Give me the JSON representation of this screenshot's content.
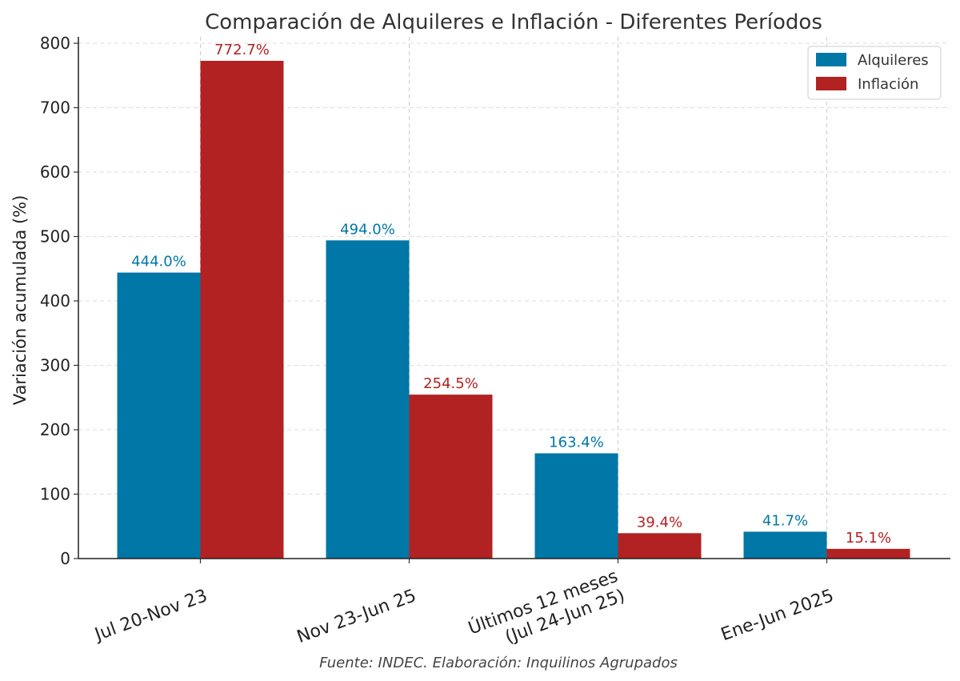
{
  "chart_data": {
    "type": "bar",
    "title": "Comparación de Alquileres e Inflación - Diferentes Períodos",
    "xlabel": "",
    "ylabel": "Variación acumulada (%)",
    "ylim": [
      0,
      810
    ],
    "yticks": [
      0,
      100,
      200,
      300,
      400,
      500,
      600,
      700,
      800
    ],
    "grid": true,
    "legend_position": "top-right",
    "categories": [
      [
        "Jul 20-Nov 23"
      ],
      [
        "Nov 23-Jun 25"
      ],
      [
        "Últimos 12 meses",
        "(Jul 24-Jun 25)"
      ],
      [
        "Ene-Jun 2025"
      ]
    ],
    "series": [
      {
        "name": "Alquileres",
        "color": "#0077a6",
        "values": [
          444.0,
          494.0,
          163.4,
          41.7
        ],
        "labels": [
          "444.0%",
          "494.0%",
          "163.4%",
          "41.7%"
        ]
      },
      {
        "name": "Inflación",
        "color": "#b22222",
        "values": [
          772.7,
          254.5,
          39.4,
          15.1
        ],
        "labels": [
          "772.7%",
          "254.5%",
          "39.4%",
          "15.1%"
        ]
      }
    ],
    "source": "Fuente: INDEC. Elaboración: Inquilinos Agrupados"
  }
}
